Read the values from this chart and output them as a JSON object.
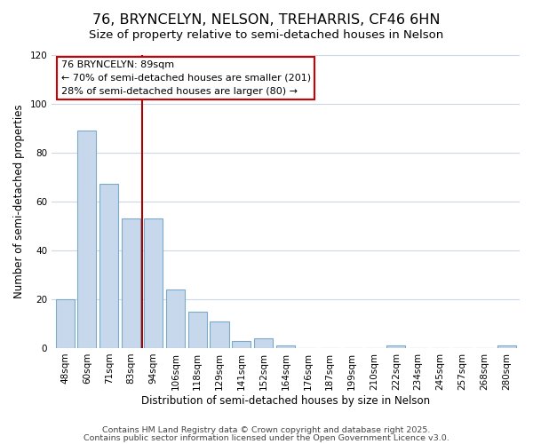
{
  "title": "76, BRYNCELYN, NELSON, TREHARRIS, CF46 6HN",
  "subtitle": "Size of property relative to semi-detached houses in Nelson",
  "xlabel": "Distribution of semi-detached houses by size in Nelson",
  "ylabel": "Number of semi-detached properties",
  "bar_labels": [
    "48sqm",
    "60sqm",
    "71sqm",
    "83sqm",
    "94sqm",
    "106sqm",
    "118sqm",
    "129sqm",
    "141sqm",
    "152sqm",
    "164sqm",
    "176sqm",
    "187sqm",
    "199sqm",
    "210sqm",
    "222sqm",
    "234sqm",
    "245sqm",
    "257sqm",
    "268sqm",
    "280sqm"
  ],
  "bar_heights": [
    20,
    89,
    67,
    53,
    53,
    24,
    15,
    11,
    3,
    4,
    1,
    0,
    0,
    0,
    0,
    1,
    0,
    0,
    0,
    0,
    1
  ],
  "bar_color": "#c8d8ec",
  "bar_edge_color": "#7aaac8",
  "vline_color": "#aa0000",
  "annotation_title": "76 BRYNCELYN: 89sqm",
  "annotation_line1": "← 70% of semi-detached houses are smaller (201)",
  "annotation_line2": "28% of semi-detached houses are larger (80) →",
  "annotation_box_color": "#ffffff",
  "annotation_box_edge": "#cc0000",
  "ylim": [
    0,
    120
  ],
  "yticks": [
    0,
    20,
    40,
    60,
    80,
    100,
    120
  ],
  "footer1": "Contains HM Land Registry data © Crown copyright and database right 2025.",
  "footer2": "Contains public sector information licensed under the Open Government Licence v3.0.",
  "bg_color": "#ffffff",
  "grid_color": "#ccd8e8",
  "title_fontsize": 11.5,
  "subtitle_fontsize": 9.5,
  "axis_label_fontsize": 8.5,
  "tick_fontsize": 7.5,
  "footer_fontsize": 6.8,
  "vline_pos": 3.5
}
